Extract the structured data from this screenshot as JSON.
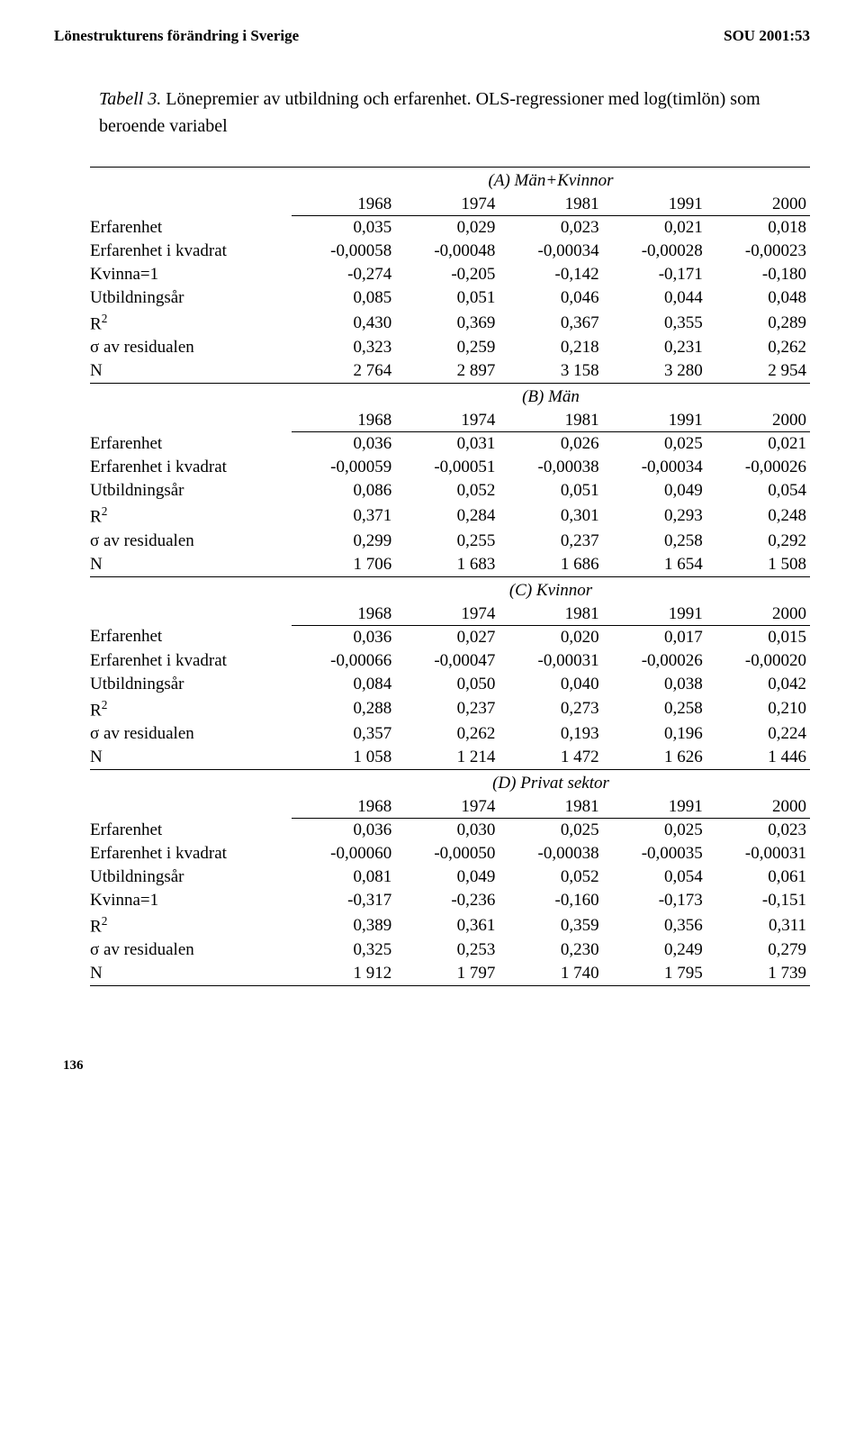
{
  "header": {
    "left": "Lönestrukturens förändring i Sverige",
    "right": "SOU 2001:53"
  },
  "caption": {
    "tabell": "Tabell 3.",
    "text": " Lönepremier av utbildning och erfarenhet. OLS-regressioner med log(timlön) som beroende variabel"
  },
  "panels": [
    {
      "title": "(A) Män+Kvinnor",
      "years": [
        "1968",
        "1974",
        "1981",
        "1991",
        "2000"
      ],
      "rows": [
        {
          "label": "Erfarenhet",
          "vals": [
            "0,035",
            "0,029",
            "0,023",
            "0,021",
            "0,018"
          ]
        },
        {
          "label": "Erfarenhet i kvadrat",
          "vals": [
            "-0,00058",
            "-0,00048",
            "-0,00034",
            "-0,00028",
            "-0,00023"
          ]
        },
        {
          "label": "Kvinna=1",
          "vals": [
            "-0,274",
            "-0,205",
            "-0,142",
            "-0,171",
            "-0,180"
          ]
        },
        {
          "label": "Utbildningsår",
          "vals": [
            "0,085",
            "0,051",
            "0,046",
            "0,044",
            "0,048"
          ]
        },
        {
          "label": "R²",
          "vals": [
            "0,430",
            "0,369",
            "0,367",
            "0,355",
            "0,289"
          ]
        },
        {
          "label": "σ av residualen",
          "vals": [
            "0,323",
            "0,259",
            "0,218",
            "0,231",
            "0,262"
          ]
        },
        {
          "label": "N",
          "vals": [
            "2 764",
            "2 897",
            "3 158",
            "3 280",
            "2 954"
          ]
        }
      ]
    },
    {
      "title": "(B) Män",
      "years": [
        "1968",
        "1974",
        "1981",
        "1991",
        "2000"
      ],
      "rows": [
        {
          "label": "Erfarenhet",
          "vals": [
            "0,036",
            "0,031",
            "0,026",
            "0,025",
            "0,021"
          ]
        },
        {
          "label": "Erfarenhet i kvadrat",
          "vals": [
            "-0,00059",
            "-0,00051",
            "-0,00038",
            "-0,00034",
            "-0,00026"
          ]
        },
        {
          "label": "Utbildningsår",
          "vals": [
            "0,086",
            "0,052",
            "0,051",
            "0,049",
            "0,054"
          ]
        },
        {
          "label": "R²",
          "vals": [
            "0,371",
            "0,284",
            "0,301",
            "0,293",
            "0,248"
          ]
        },
        {
          "label": "σ av residualen",
          "vals": [
            "0,299",
            "0,255",
            "0,237",
            "0,258",
            "0,292"
          ]
        },
        {
          "label": "N",
          "vals": [
            "1 706",
            "1 683",
            "1 686",
            "1 654",
            "1 508"
          ]
        }
      ]
    },
    {
      "title": "(C) Kvinnor",
      "years": [
        "1968",
        "1974",
        "1981",
        "1991",
        "2000"
      ],
      "rows": [
        {
          "label": "Erfarenhet",
          "vals": [
            "0,036",
            "0,027",
            "0,020",
            "0,017",
            "0,015"
          ]
        },
        {
          "label": "Erfarenhet i kvadrat",
          "vals": [
            "-0,00066",
            "-0,00047",
            "-0,00031",
            "-0,00026",
            "-0,00020"
          ]
        },
        {
          "label": "Utbildningsår",
          "vals": [
            "0,084",
            "0,050",
            "0,040",
            "0,038",
            "0,042"
          ]
        },
        {
          "label": "R²",
          "vals": [
            "0,288",
            "0,237",
            "0,273",
            "0,258",
            "0,210"
          ]
        },
        {
          "label": "σ av residualen",
          "vals": [
            "0,357",
            "0,262",
            "0,193",
            "0,196",
            "0,224"
          ]
        },
        {
          "label": "N",
          "vals": [
            "1 058",
            "1 214",
            "1 472",
            "1 626",
            "1 446"
          ]
        }
      ]
    },
    {
      "title": "(D) Privat sektor",
      "years": [
        "1968",
        "1974",
        "1981",
        "1991",
        "2000"
      ],
      "rows": [
        {
          "label": "Erfarenhet",
          "vals": [
            "0,036",
            "0,030",
            "0,025",
            "0,025",
            "0,023"
          ]
        },
        {
          "label": "Erfarenhet i kvadrat",
          "vals": [
            "-0,00060",
            "-0,00050",
            "-0,00038",
            "-0,00035",
            "-0,00031"
          ]
        },
        {
          "label": "Utbildningsår",
          "vals": [
            "0,081",
            "0,049",
            "0,052",
            "0,054",
            "0,061"
          ]
        },
        {
          "label": "Kvinna=1",
          "vals": [
            "-0,317",
            "-0,236",
            "-0,160",
            "-0,173",
            "-0,151"
          ]
        },
        {
          "label": "R²",
          "vals": [
            "0,389",
            "0,361",
            "0,359",
            "0,356",
            "0,311"
          ]
        },
        {
          "label": "σ av residualen",
          "vals": [
            "0,325",
            "0,253",
            "0,230",
            "0,249",
            "0,279"
          ]
        },
        {
          "label": "N",
          "vals": [
            "1 912",
            "1 797",
            "1 740",
            "1 795",
            "1 739"
          ]
        }
      ]
    }
  ],
  "page_number": "136",
  "table_style": {
    "border_color": "#000000",
    "background": "#ffffff",
    "font_size": 19,
    "header_font_size": 17,
    "caption_font_size": 20
  }
}
